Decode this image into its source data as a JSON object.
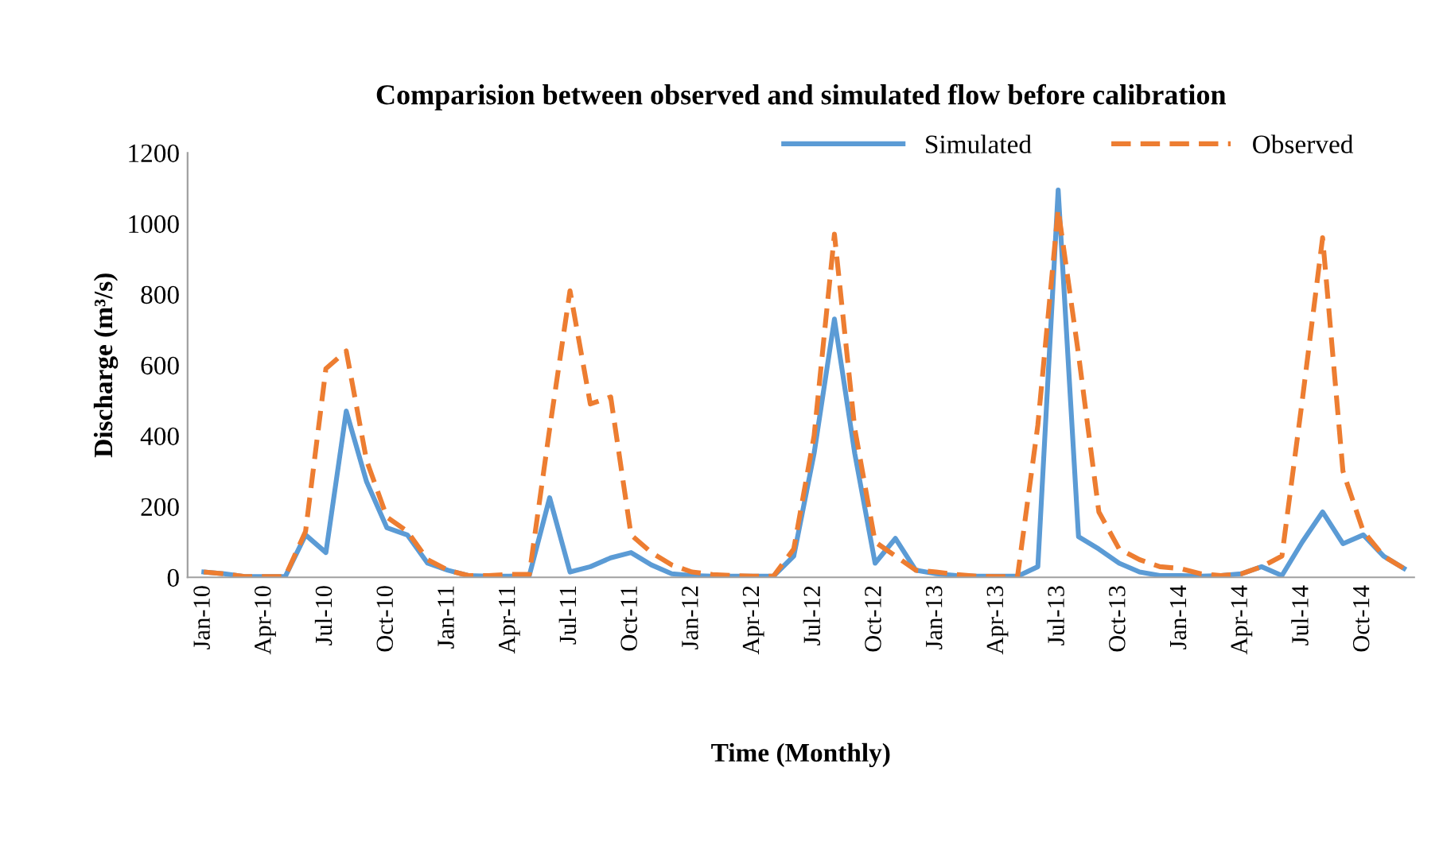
{
  "chart_data": {
    "type": "line",
    "title": "Comparision between observed and simulated flow before calibration",
    "xlabel": "Time (Monthly)",
    "ylabel": "Discharge (m³/s)",
    "categories": [
      "Jan-10",
      null,
      null,
      "Apr-10",
      null,
      null,
      "Jul-10",
      null,
      null,
      "Oct-10",
      null,
      null,
      "Jan-11",
      null,
      null,
      "Apr-11",
      null,
      null,
      "Jul-11",
      null,
      null,
      "Oct-11",
      null,
      null,
      "Jan-12",
      null,
      null,
      "Apr-12",
      null,
      null,
      "Jul-12",
      null,
      null,
      "Oct-12",
      null,
      null,
      "Jan-13",
      null,
      null,
      "Apr-13",
      null,
      null,
      "Jul-13",
      null,
      null,
      "Oct-13",
      null,
      null,
      "Jan-14",
      null,
      null,
      "Apr-14",
      null,
      null,
      "Jul-14",
      null,
      null,
      "Oct-14",
      null,
      null
    ],
    "series": [
      {
        "name": "Simulated",
        "color": "#5b9bd5",
        "line_style": "solid",
        "values": [
          15,
          10,
          2,
          2,
          2,
          120,
          70,
          470,
          270,
          140,
          120,
          40,
          20,
          5,
          3,
          3,
          5,
          225,
          15,
          30,
          55,
          70,
          35,
          10,
          5,
          3,
          3,
          3,
          3,
          60,
          350,
          730,
          350,
          40,
          110,
          20,
          10,
          5,
          3,
          3,
          3,
          30,
          1095,
          115,
          80,
          40,
          15,
          5,
          5,
          3,
          5,
          10,
          30,
          5,
          100,
          185,
          95,
          120,
          60,
          25
        ]
      },
      {
        "name": "Observed",
        "color": "#ed7d31",
        "line_style": "dashed",
        "values": [
          15,
          10,
          2,
          2,
          2,
          130,
          590,
          640,
          330,
          170,
          130,
          50,
          20,
          5,
          5,
          8,
          8,
          420,
          810,
          490,
          510,
          120,
          70,
          35,
          15,
          8,
          5,
          3,
          3,
          80,
          400,
          970,
          420,
          100,
          60,
          20,
          15,
          8,
          3,
          2,
          2,
          430,
          1040,
          630,
          185,
          80,
          50,
          30,
          25,
          10,
          5,
          10,
          30,
          60,
          500,
          960,
          300,
          130,
          60,
          25
        ]
      }
    ],
    "ylim": [
      0,
      1200
    ],
    "yticks": [
      0,
      200,
      400,
      600,
      800,
      1000,
      1200
    ],
    "grid": false,
    "legend": "top right"
  }
}
